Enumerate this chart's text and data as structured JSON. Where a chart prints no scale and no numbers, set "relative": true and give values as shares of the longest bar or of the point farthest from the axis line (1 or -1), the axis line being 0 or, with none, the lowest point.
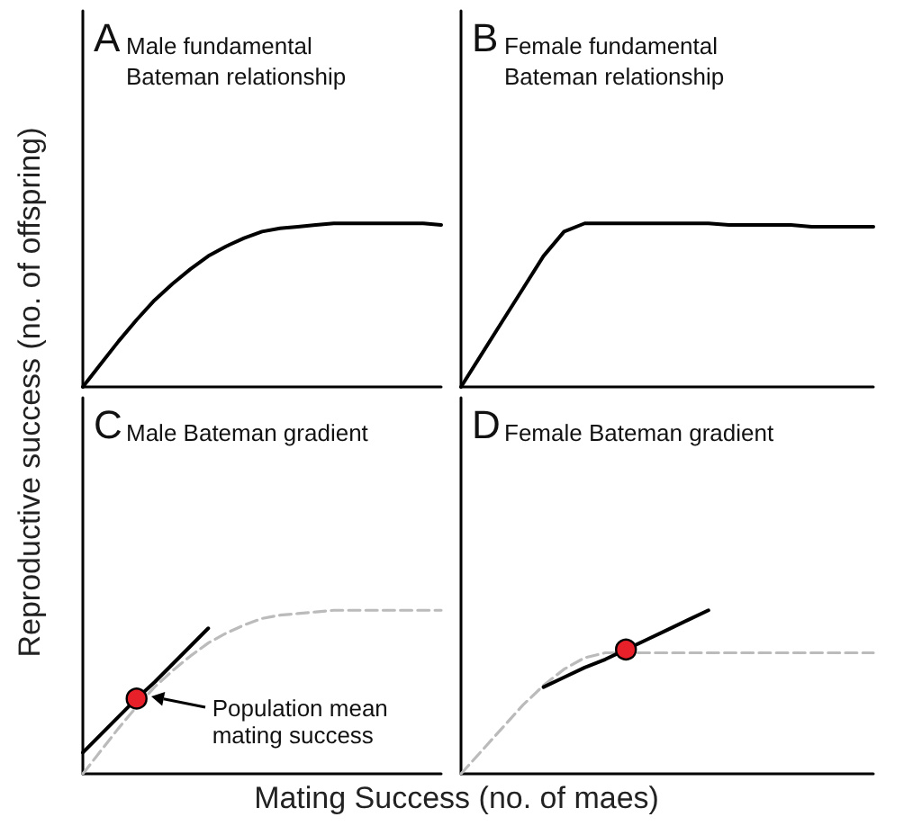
{
  "chart_data": [
    {
      "type": "line",
      "relative": true,
      "title": "A",
      "subtitle": "Male fundamental Bateman relationship",
      "xlabel": "Mating Success (no. of maes)",
      "ylabel": "Reproductive success (no. of offspring)",
      "categories": [
        null,
        null,
        null,
        null,
        null,
        null,
        null,
        null,
        null,
        null,
        null,
        null,
        null,
        null,
        null,
        null,
        null,
        null,
        null,
        null,
        null
      ],
      "marker": "none",
      "series": [
        {
          "color": "#000000",
          "values": [
            0,
            0.14,
            0.28,
            0.41,
            0.53,
            0.63,
            0.72,
            0.8,
            0.86,
            0.91,
            0.95,
            0.97,
            0.98,
            0.99,
            1,
            1,
            1,
            1,
            1,
            1,
            0.99
          ]
        }
      ]
    },
    {
      "type": "line",
      "relative": true,
      "title": "B",
      "subtitle": "Female fundamental Bateman relationship",
      "categories": [
        null,
        null,
        null,
        null,
        null,
        null,
        null,
        null,
        null,
        null,
        null,
        null,
        null,
        null,
        null,
        null,
        null,
        null,
        null,
        null,
        null
      ],
      "marker": "none",
      "series": [
        {
          "color": "#000000",
          "values": [
            0,
            0.2,
            0.4,
            0.6,
            0.8,
            0.95,
            1,
            1,
            1,
            1,
            1,
            1,
            1,
            0.99,
            0.99,
            0.99,
            0.99,
            0.98,
            0.98,
            0.98,
            0.98
          ]
        }
      ]
    },
    {
      "type": "line",
      "relative": true,
      "title": "C",
      "subtitle": "Male Bateman gradient",
      "annotations": [
        "Population mean mating success"
      ],
      "categories": [
        null,
        null,
        null,
        null,
        null,
        null,
        null,
        null,
        null,
        null,
        null,
        null,
        null,
        null,
        null,
        null,
        null,
        null,
        null,
        null,
        null
      ],
      "marker": "none",
      "series": [
        {
          "color": "#bbbbbb",
          "line_style": "dashed",
          "values": [
            0,
            0.14,
            0.28,
            0.41,
            0.53,
            0.63,
            0.72,
            0.8,
            0.86,
            0.91,
            0.95,
            0.97,
            0.98,
            0.99,
            1,
            1,
            1,
            1,
            1,
            1,
            1
          ]
        },
        {
          "color": "#000000",
          "values": [
            0.13,
            0.24,
            0.35,
            0.46,
            0.56,
            0.67,
            0.78,
            0.89,
            null,
            null,
            null,
            null,
            null,
            null,
            null,
            null,
            null,
            null,
            null,
            null,
            null
          ]
        },
        {
          "type": "scatter",
          "marker": "circle",
          "color": "#e8202a",
          "values": [
            null,
            null,
            null,
            0.46,
            null,
            null,
            null,
            null,
            null,
            null,
            null,
            null,
            null,
            null,
            null,
            null,
            null,
            null,
            null,
            null,
            null
          ]
        }
      ]
    },
    {
      "type": "line",
      "relative": true,
      "title": "D",
      "subtitle": "Female Bateman gradient",
      "categories": [
        null,
        null,
        null,
        null,
        null,
        null,
        null,
        null,
        null,
        null,
        null,
        null,
        null,
        null,
        null,
        null,
        null,
        null,
        null,
        null,
        null
      ],
      "marker": "none",
      "series": [
        {
          "color": "#bbbbbb",
          "line_style": "dashed",
          "values": [
            0,
            0.14,
            0.28,
            0.42,
            0.54,
            0.64,
            0.71,
            0.74,
            0.74,
            0.74,
            0.74,
            0.74,
            0.74,
            0.74,
            0.74,
            0.74,
            0.74,
            0.74,
            0.74,
            0.74,
            0.74
          ]
        },
        {
          "color": "#000000",
          "values": [
            null,
            null,
            null,
            null,
            0.53,
            0.59,
            0.65,
            0.7,
            0.76,
            0.82,
            0.88,
            0.94,
            1,
            null,
            null,
            null,
            null,
            null,
            null,
            null,
            null
          ]
        },
        {
          "type": "scatter",
          "marker": "circle",
          "color": "#e8202a",
          "values": [
            null,
            null,
            null,
            null,
            null,
            null,
            null,
            null,
            0.76,
            null,
            null,
            null,
            null,
            null,
            null,
            null,
            null,
            null,
            null,
            null,
            null
          ]
        }
      ]
    }
  ]
}
